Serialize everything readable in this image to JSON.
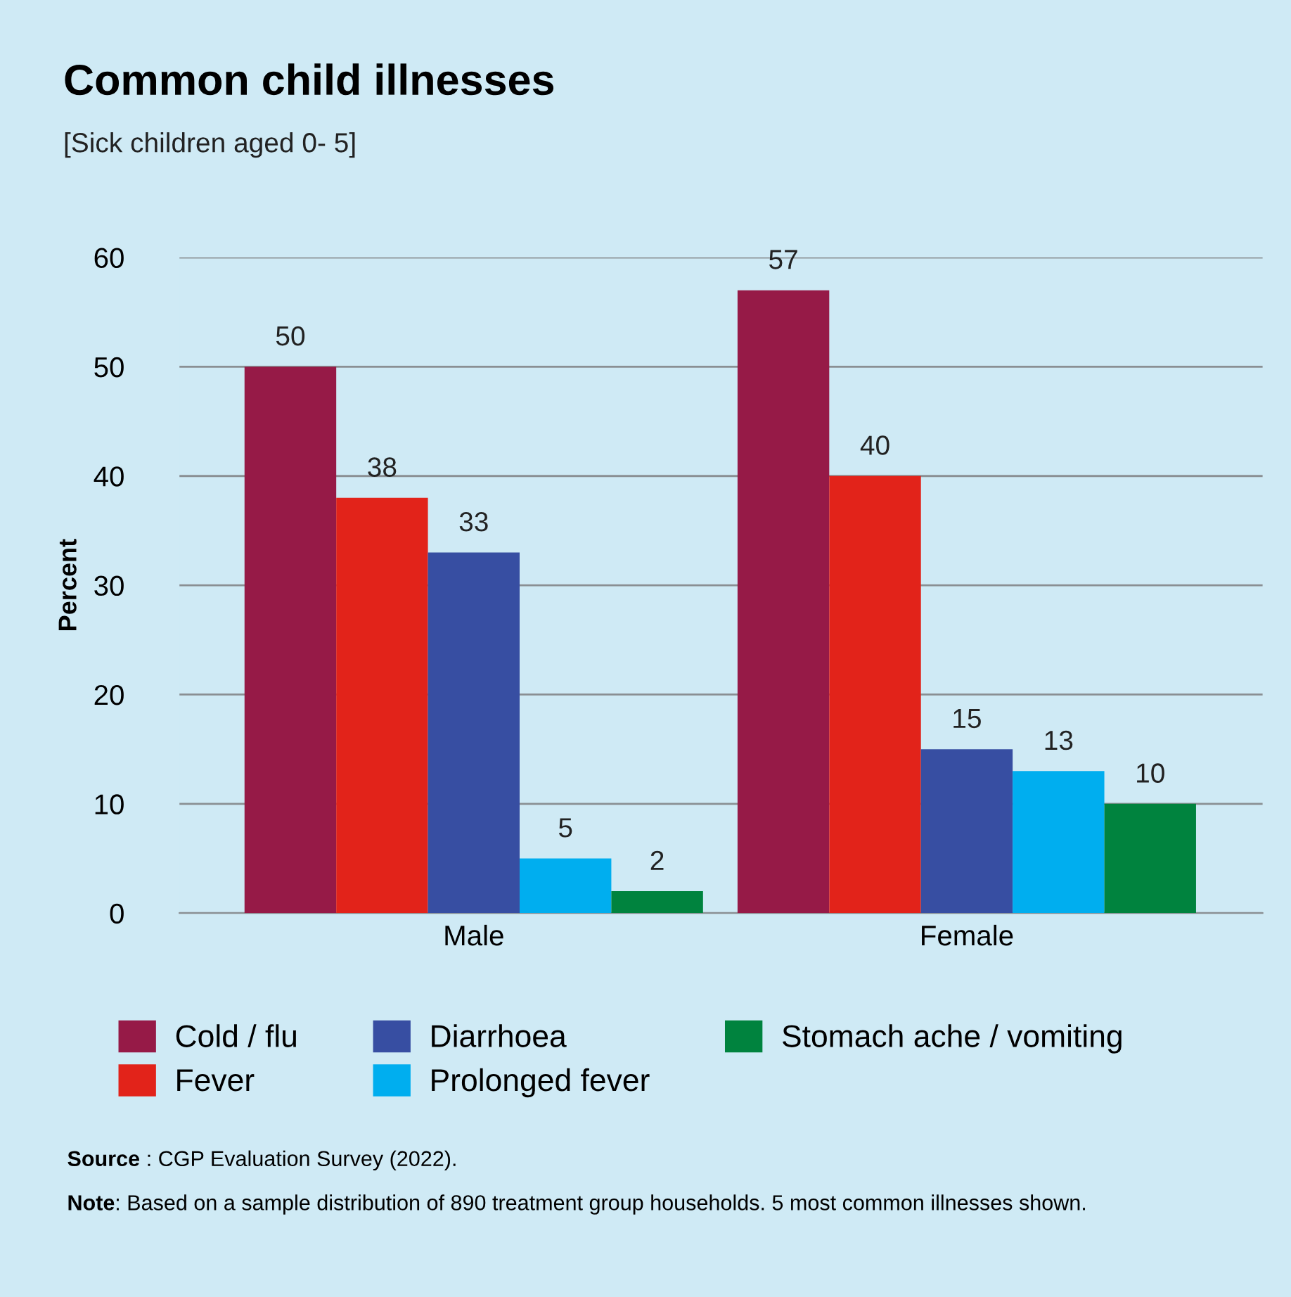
{
  "chart_data": {
    "type": "bar",
    "title": "Common child illnesses",
    "subtitle": "[Sick children aged 0- 5]",
    "ylabel": "Percent",
    "categories": [
      "Male",
      "Female"
    ],
    "series": [
      {
        "name": "Cold / flu",
        "color": "#961a47",
        "values": [
          50,
          57
        ]
      },
      {
        "name": "Fever",
        "color": "#e2231a",
        "values": [
          38,
          40
        ]
      },
      {
        "name": "Diarrhoea",
        "color": "#374ea2",
        "values": [
          33,
          15
        ]
      },
      {
        "name": "Prolonged fever",
        "color": "#00aeef",
        "values": [
          5,
          13
        ]
      },
      {
        "name": "Stomach ache / vomiting",
        "color": "#00833e",
        "values": [
          2,
          10
        ]
      }
    ],
    "ylim": [
      0,
      60
    ],
    "yticks": [
      0,
      10,
      20,
      30,
      40,
      50,
      60
    ],
    "grid": "y",
    "legend": "bottom",
    "data_labels": true,
    "annotations": [
      "Source : CGP Evaluation Survey (2022).",
      "Note: Based on a sample distribution of 890 treatment group households. 5 most common illnesses shown."
    ]
  }
}
